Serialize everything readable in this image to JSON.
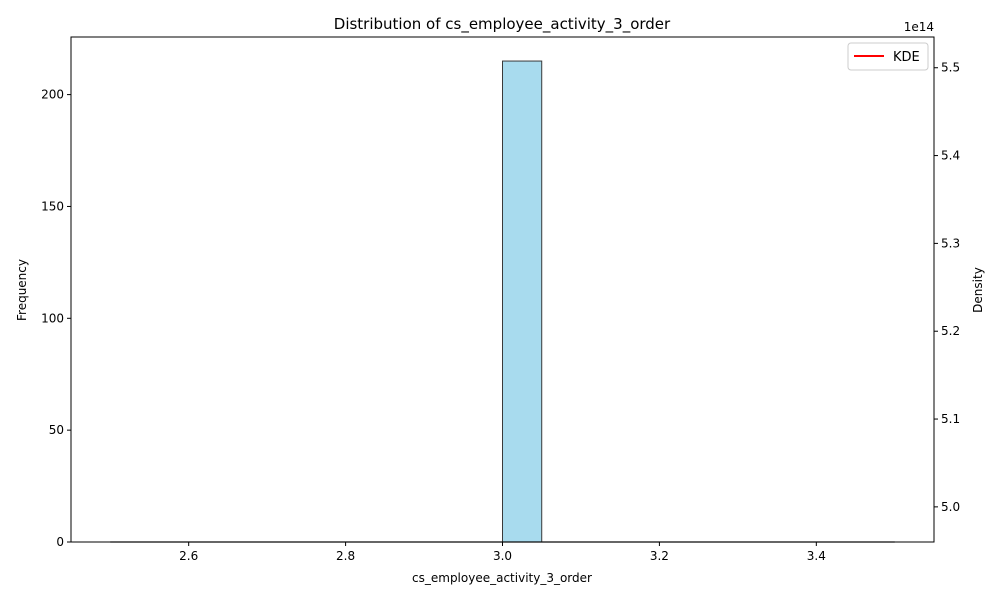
{
  "chart_data": {
    "type": "bar",
    "title": "Distribution of cs_employee_activity_3_order",
    "xlabel": "cs_employee_activity_3_order",
    "ylabel": "Frequency",
    "y2label": "Density",
    "y2_offset_text": "1e14",
    "xlim": [
      2.45,
      3.55
    ],
    "ylim": [
      0,
      225.75
    ],
    "y2lim": [
      4.96,
      5.535
    ],
    "xticks": [
      2.6,
      2.8,
      3.0,
      3.2,
      3.4
    ],
    "xtick_labels": [
      "2.6",
      "2.8",
      "3.0",
      "3.2",
      "3.4"
    ],
    "yticks": [
      0,
      50,
      100,
      150,
      200
    ],
    "ytick_labels": [
      "0",
      "50",
      "100",
      "150",
      "200"
    ],
    "y2ticks": [
      5.0,
      5.1,
      5.2,
      5.3,
      5.4,
      5.5
    ],
    "y2tick_labels": [
      "5.0",
      "5.1",
      "5.2",
      "5.3",
      "5.4",
      "5.5"
    ],
    "bins": [
      {
        "x0": 3.0,
        "x1": 3.05,
        "value": 215
      }
    ],
    "baseline_range": [
      2.5,
      3.5
    ],
    "legend": {
      "placement": "top-right",
      "entries": [
        {
          "label": "KDE",
          "color": "#ff0000"
        }
      ]
    },
    "colors": {
      "bar_fill": "#a8dbee",
      "bar_edge": "#3a3a3a",
      "kde": "#ff0000"
    },
    "grid": false
  }
}
